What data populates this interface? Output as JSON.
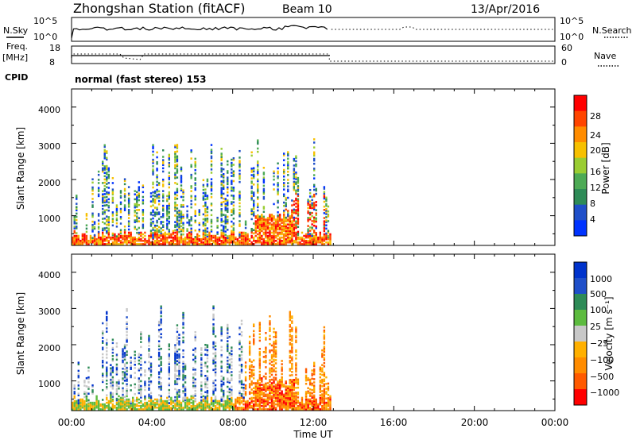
{
  "header": {
    "title": "Zhongshan Station (fitACF)",
    "beam": "Beam 10",
    "date": "13/Apr/2016"
  },
  "top_panels": {
    "nsky_label": "N.Sky",
    "nsky_ticks": [
      "10^5",
      "10^0"
    ],
    "nsearch_label": "N.Search",
    "nsearch_ticks": [
      "10^5",
      "10^0"
    ],
    "freq_label": "Freq.",
    "freq_unit": "[MHz]",
    "freq_ticks": [
      "18",
      "8"
    ],
    "nave_label": "Nave",
    "nave_ticks": [
      "60",
      "0"
    ],
    "cpid_label": "CPID",
    "cpid_value": "normal (fast stereo) 153"
  },
  "x_axis": {
    "label": "Time UT",
    "ticks": [
      "00:00",
      "04:00",
      "08:00",
      "12:00",
      "16:00",
      "20:00",
      "00:00"
    ]
  },
  "colors": {
    "power_scale": [
      "#0033ff",
      "#1f4fc9",
      "#2e8b57",
      "#4daa55",
      "#9acd32",
      "#f7c000",
      "#ff8c00",
      "#ff4500",
      "#ff0000"
    ],
    "velocity_scale": [
      "#ff0000",
      "#ff5a00",
      "#ff8c00",
      "#ffb000",
      "#c8c8c8",
      "#5dbb3f",
      "#2e8b57",
      "#1f4fc9",
      "#0033cc"
    ]
  },
  "chart_data": [
    {
      "type": "heatmap",
      "name_panel": "power",
      "ylabel": "Slant Range [km]",
      "yticks": [
        "1000",
        "2000",
        "3000",
        "4000"
      ],
      "ylim": [
        180,
        4500
      ],
      "xlim": [
        0,
        24
      ],
      "colorbar_label": "Power [dB]",
      "colorbar_ticks": [
        "4",
        "8",
        "12",
        "16",
        "20",
        "24",
        "28"
      ],
      "data_extent_hours": [
        0,
        12.8
      ]
    },
    {
      "type": "heatmap",
      "name_panel": "velocity",
      "ylabel": "Slant Range [km]",
      "yticks": [
        "1000",
        "2000",
        "3000",
        "4000"
      ],
      "ylim": [
        180,
        4500
      ],
      "xlim": [
        0,
        24
      ],
      "colorbar_label": "Velocity [m s⁻¹]",
      "colorbar_ticks": [
        "1000",
        "500",
        "100",
        "25",
        "−25",
        "−100",
        "−500",
        "−1000"
      ],
      "data_extent_hours": [
        0,
        12.8
      ]
    }
  ]
}
